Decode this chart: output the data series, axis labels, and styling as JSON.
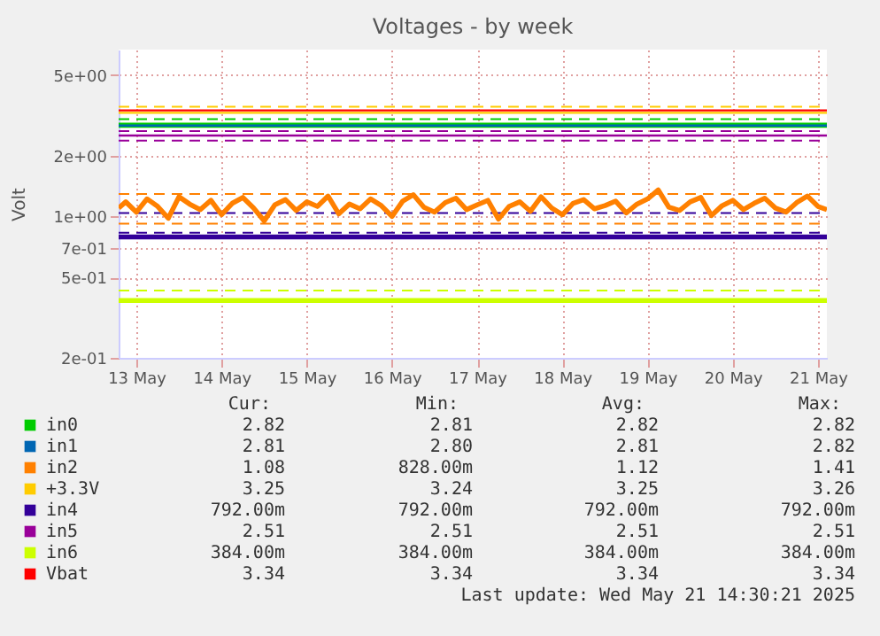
{
  "chart_data": {
    "type": "line",
    "title": "Voltages - by week",
    "ylabel": "Volt",
    "log": "y",
    "grid": true,
    "legend": "bottom",
    "ylim": [
      0.2,
      6.67
    ],
    "yticks": [
      {
        "value": 0.2,
        "label": "2e-01"
      },
      {
        "value": 0.5,
        "label": "5e-01"
      },
      {
        "value": 0.7,
        "label": "7e-01"
      },
      {
        "value": 1,
        "label": "1e+00"
      },
      {
        "value": 2,
        "label": "2e+00"
      },
      {
        "value": 5,
        "label": "5e+00"
      }
    ],
    "xlim": [
      "2025-05-13T07:00",
      "2025-05-21T14:30"
    ],
    "xticks": [
      {
        "value": "2025-05-13T12:00",
        "label": "13 May"
      },
      {
        "value": "2025-05-14T12:00",
        "label": "14 May"
      },
      {
        "value": "2025-05-15T12:00",
        "label": "15 May"
      },
      {
        "value": "2025-05-16T12:00",
        "label": "16 May"
      },
      {
        "value": "2025-05-17T12:00",
        "label": "17 May"
      },
      {
        "value": "2025-05-18T12:00",
        "label": "18 May"
      },
      {
        "value": "2025-05-19T12:00",
        "label": "19 May"
      },
      {
        "value": "2025-05-20T12:00",
        "label": "20 May"
      },
      {
        "value": "2025-05-21T12:00",
        "label": "21 May"
      }
    ],
    "series": [
      {
        "name": "in0",
        "color": "#00cc00",
        "x": [
          "2025-05-13T07:00",
          "2025-05-21T14:30"
        ],
        "values": [
          2.82,
          2.82
        ]
      },
      {
        "name": "in1",
        "color": "#0066b3",
        "x": [
          "2025-05-13T07:00",
          "2025-05-21T14:30"
        ],
        "values": [
          2.81,
          2.81
        ]
      },
      {
        "name": "in2",
        "color": "#ff8000",
        "x": [
          "2025-05-13T07:00",
          "2025-05-13T09:00",
          "2025-05-13T12:00",
          "2025-05-13T15:00",
          "2025-05-13T18:00",
          "2025-05-13T21:00",
          "2025-05-14T00:00",
          "2025-05-14T03:00",
          "2025-05-14T06:00",
          "2025-05-14T09:00",
          "2025-05-14T12:00",
          "2025-05-14T15:00",
          "2025-05-14T18:00",
          "2025-05-14T21:00",
          "2025-05-15T00:00",
          "2025-05-15T03:00",
          "2025-05-15T06:00",
          "2025-05-15T09:00",
          "2025-05-15T12:00",
          "2025-05-15T15:00",
          "2025-05-15T18:00",
          "2025-05-15T21:00",
          "2025-05-16T00:00",
          "2025-05-16T03:00",
          "2025-05-16T06:00",
          "2025-05-16T09:00",
          "2025-05-16T12:00",
          "2025-05-16T15:00",
          "2025-05-16T18:00",
          "2025-05-16T21:00",
          "2025-05-17T00:00",
          "2025-05-17T03:00",
          "2025-05-17T06:00",
          "2025-05-17T09:00",
          "2025-05-17T12:00",
          "2025-05-17T15:00",
          "2025-05-17T18:00",
          "2025-05-17T21:00",
          "2025-05-18T00:00",
          "2025-05-18T03:00",
          "2025-05-18T06:00",
          "2025-05-18T09:00",
          "2025-05-18T12:00",
          "2025-05-18T15:00",
          "2025-05-18T18:00",
          "2025-05-18T21:00",
          "2025-05-19T00:00",
          "2025-05-19T03:00",
          "2025-05-19T06:00",
          "2025-05-19T09:00",
          "2025-05-19T12:00",
          "2025-05-19T15:00",
          "2025-05-19T18:00",
          "2025-05-19T21:00",
          "2025-05-20T00:00",
          "2025-05-20T03:00",
          "2025-05-20T06:00",
          "2025-05-20T09:00",
          "2025-05-20T12:00",
          "2025-05-20T15:00",
          "2025-05-20T18:00",
          "2025-05-20T21:00",
          "2025-05-21T00:00",
          "2025-05-21T03:00",
          "2025-05-21T06:00",
          "2025-05-21T09:00",
          "2025-05-21T12:00",
          "2025-05-21T14:30"
        ],
        "values": [
          1.1,
          1.18,
          1.05,
          1.22,
          1.12,
          0.98,
          1.25,
          1.15,
          1.08,
          1.2,
          1.02,
          1.16,
          1.24,
          1.1,
          0.95,
          1.14,
          1.21,
          1.07,
          1.18,
          1.12,
          1.26,
          1.03,
          1.15,
          1.09,
          1.22,
          1.13,
          1.0,
          1.19,
          1.28,
          1.11,
          1.05,
          1.17,
          1.23,
          1.08,
          1.14,
          1.2,
          0.97,
          1.12,
          1.18,
          1.06,
          1.25,
          1.1,
          1.02,
          1.16,
          1.21,
          1.09,
          1.13,
          1.19,
          1.04,
          1.15,
          1.22,
          1.35,
          1.11,
          1.07,
          1.18,
          1.24,
          1.01,
          1.13,
          1.2,
          1.08,
          1.16,
          1.23,
          1.1,
          1.05,
          1.17,
          1.26,
          1.12,
          1.08
        ]
      },
      {
        "name": "+3.3V",
        "color": "#ffcc00",
        "x": [
          "2025-05-13T07:00",
          "2025-05-21T14:30"
        ],
        "values": [
          3.25,
          3.25
        ]
      },
      {
        "name": "in4",
        "color": "#330099",
        "x": [
          "2025-05-13T07:00",
          "2025-05-21T14:30"
        ],
        "values": [
          0.792,
          0.792
        ]
      },
      {
        "name": "in5",
        "color": "#990099",
        "x": [
          "2025-05-13T07:00",
          "2025-05-21T14:30"
        ],
        "values": [
          2.51,
          2.51
        ]
      },
      {
        "name": "in6",
        "color": "#ccff00",
        "x": [
          "2025-05-13T07:00",
          "2025-05-21T14:30"
        ],
        "values": [
          0.384,
          0.384
        ]
      },
      {
        "name": "Vbat",
        "color": "#ff0000",
        "x": [
          "2025-05-13T07:00",
          "2025-05-21T14:30"
        ],
        "values": [
          3.34,
          3.34
        ]
      }
    ],
    "ref_lines": [
      {
        "axis": "y",
        "value": 3.48,
        "label": null,
        "color": "#ffcc00",
        "line_style": "dashed"
      },
      {
        "axis": "y",
        "value": 3.02,
        "label": null,
        "color": "#00cc00",
        "line_style": "dashed"
      },
      {
        "axis": "y",
        "value": 2.64,
        "label": null,
        "color": "#990099",
        "line_style": "dashed"
      },
      {
        "axis": "y",
        "value": 2.37,
        "label": null,
        "color": "#990099",
        "line_style": "dashed"
      },
      {
        "axis": "y",
        "value": 1.29,
        "label": null,
        "color": "#ff8000",
        "line_style": "dashed"
      },
      {
        "axis": "y",
        "value": 0.92,
        "label": null,
        "color": "#ff8000",
        "line_style": "dashed"
      },
      {
        "axis": "y",
        "value": 1.04,
        "label": null,
        "color": "#330099",
        "line_style": "dashed"
      },
      {
        "axis": "y",
        "value": 0.83,
        "label": null,
        "color": "#330099",
        "line_style": "dashed"
      },
      {
        "axis": "y",
        "value": 0.43,
        "label": null,
        "color": "#ccff00",
        "line_style": "dashed"
      }
    ],
    "annotations": [
      "Cur:",
      "Min:",
      "Avg:",
      "Max:",
      "2.82",
      "2.81",
      "2.82",
      "2.82",
      "2.81",
      "2.80",
      "2.81",
      "2.82",
      "1.08",
      "828.00m",
      "1.12",
      "1.41",
      "3.25",
      "3.24",
      "3.25",
      "3.26",
      "792.00m",
      "792.00m",
      "792.00m",
      "792.00m",
      "2.51",
      "2.51",
      "2.51",
      "2.51",
      "384.00m",
      "384.00m",
      "384.00m",
      "384.00m",
      "3.34",
      "3.34",
      "3.34",
      "3.34",
      "Last update: Wed May 21 14:30:21 2025"
    ]
  }
}
